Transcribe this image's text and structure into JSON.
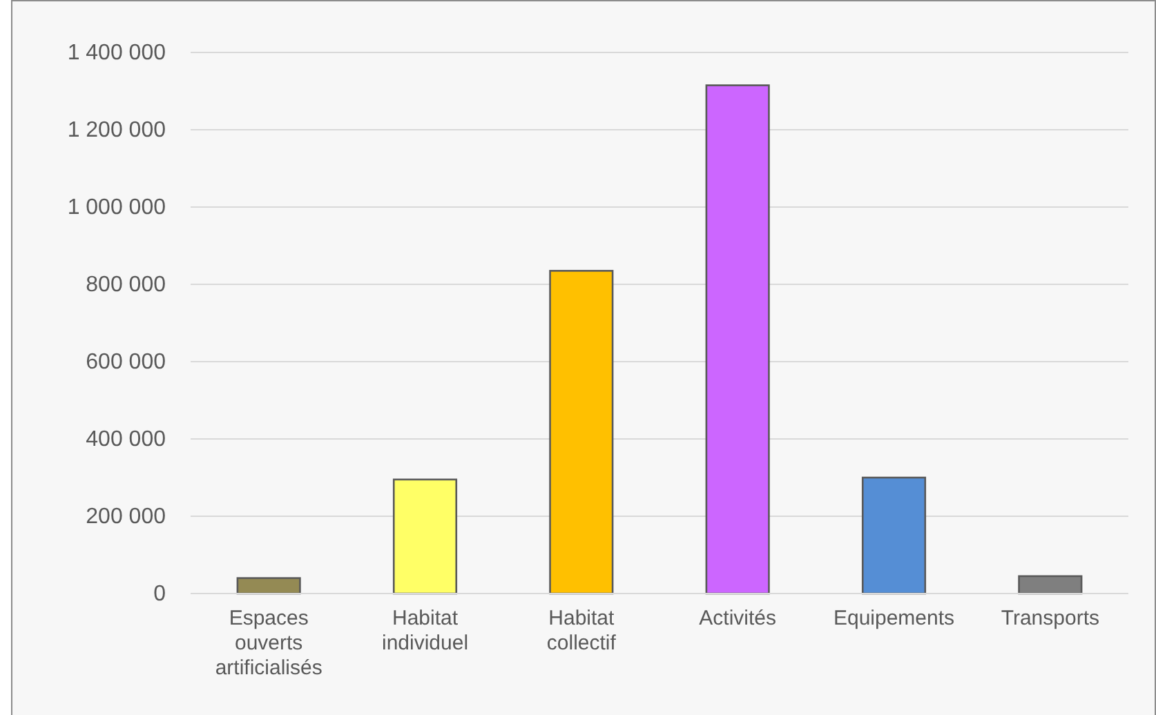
{
  "chart_data": {
    "type": "bar",
    "categories": [
      "Espaces ouverts artificialisés",
      "Habitat individuel",
      "Habitat collectif",
      "Activités",
      "Equipements",
      "Transports"
    ],
    "values": [
      40000,
      295000,
      835000,
      1315000,
      300000,
      45000
    ],
    "colors": [
      "#948a54",
      "#ffff66",
      "#ffc000",
      "#cc66ff",
      "#558ed5",
      "#7f7f7f"
    ],
    "ylim": [
      0,
      1400000
    ],
    "yticks": [
      {
        "value": 0,
        "label": "0"
      },
      {
        "value": 200000,
        "label": "200 000"
      },
      {
        "value": 400000,
        "label": "400 000"
      },
      {
        "value": 600000,
        "label": "600 000"
      },
      {
        "value": 800000,
        "label": "800 000"
      },
      {
        "value": 1000000,
        "label": "1 000 000"
      },
      {
        "value": 1200000,
        "label": "1 200 000"
      },
      {
        "value": 1400000,
        "label": "1 400 000"
      }
    ],
    "grid": "y"
  }
}
